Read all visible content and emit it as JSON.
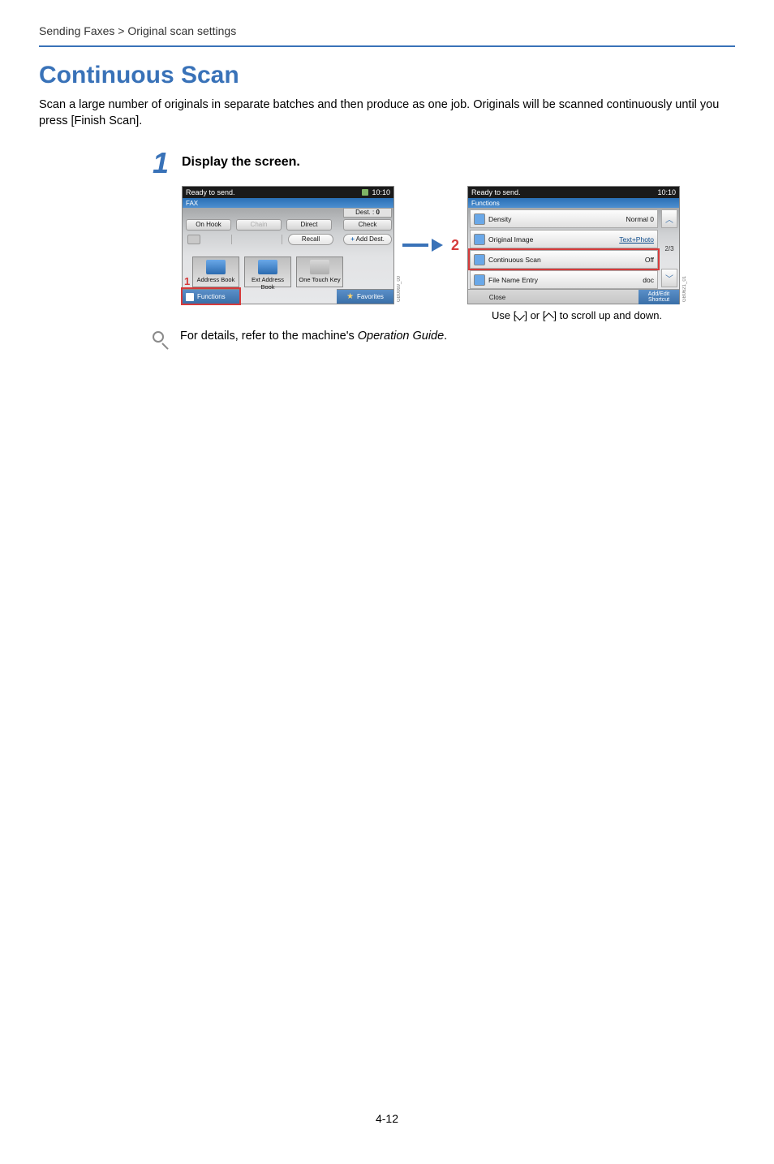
{
  "breadcrumb": "Sending Faxes > Original scan settings",
  "colors": {
    "heading": "#3972b8",
    "rule": "#3972b8",
    "step_num": "#3972b8",
    "arrow": "#3972b8",
    "callout": "#d63b3b"
  },
  "heading": "Continuous Scan",
  "intro": "Scan a large number of originals in separate batches and then produce as one job. Originals will be scanned continuously until you press [Finish Scan].",
  "step": {
    "number": "1",
    "title": "Display the screen."
  },
  "panel1": {
    "status_left": "Ready to send.",
    "status_time": "10:10",
    "crumb": "FAX",
    "dest_label": "Dest. :",
    "dest_count": "0",
    "check": "Check",
    "top_buttons": {
      "onhook": "On Hook",
      "chain": "Chain",
      "direct": "Direct"
    },
    "recall": "Recall",
    "add_dest": "Add Dest.",
    "books": {
      "addr": "Address Book",
      "ext": "Ext Address Book",
      "onetouch": "One Touch Key"
    },
    "functions": "Functions",
    "favorites": "Favorites",
    "callout": "1",
    "sidecode": "GB0069_00"
  },
  "callout2": "2",
  "panel2": {
    "status_left": "Ready to send.",
    "status_time": "10:10",
    "crumb": "Functions",
    "rows": [
      {
        "label": "Density",
        "value": "Normal 0",
        "underline": false
      },
      {
        "label": "Original Image",
        "value": "Text+Photo",
        "underline": true
      },
      {
        "label": "Continuous Scan",
        "value": "Off",
        "underline": false,
        "selected": true
      },
      {
        "label": "File Name Entry",
        "value": "doc",
        "underline": false
      }
    ],
    "page_indicator": "2/3",
    "close": "Close",
    "add_edit_line1": "Add/Edit",
    "add_edit_line2": "Shortcut",
    "sidecode": "GB0621_01"
  },
  "caption_prefix": "Use [",
  "caption_mid": "] or [",
  "caption_suffix": "] to scroll up and down.",
  "note": {
    "prefix": "For details, refer to the machine's ",
    "em": "Operation Guide",
    "suffix": "."
  },
  "page_number": "4-12"
}
